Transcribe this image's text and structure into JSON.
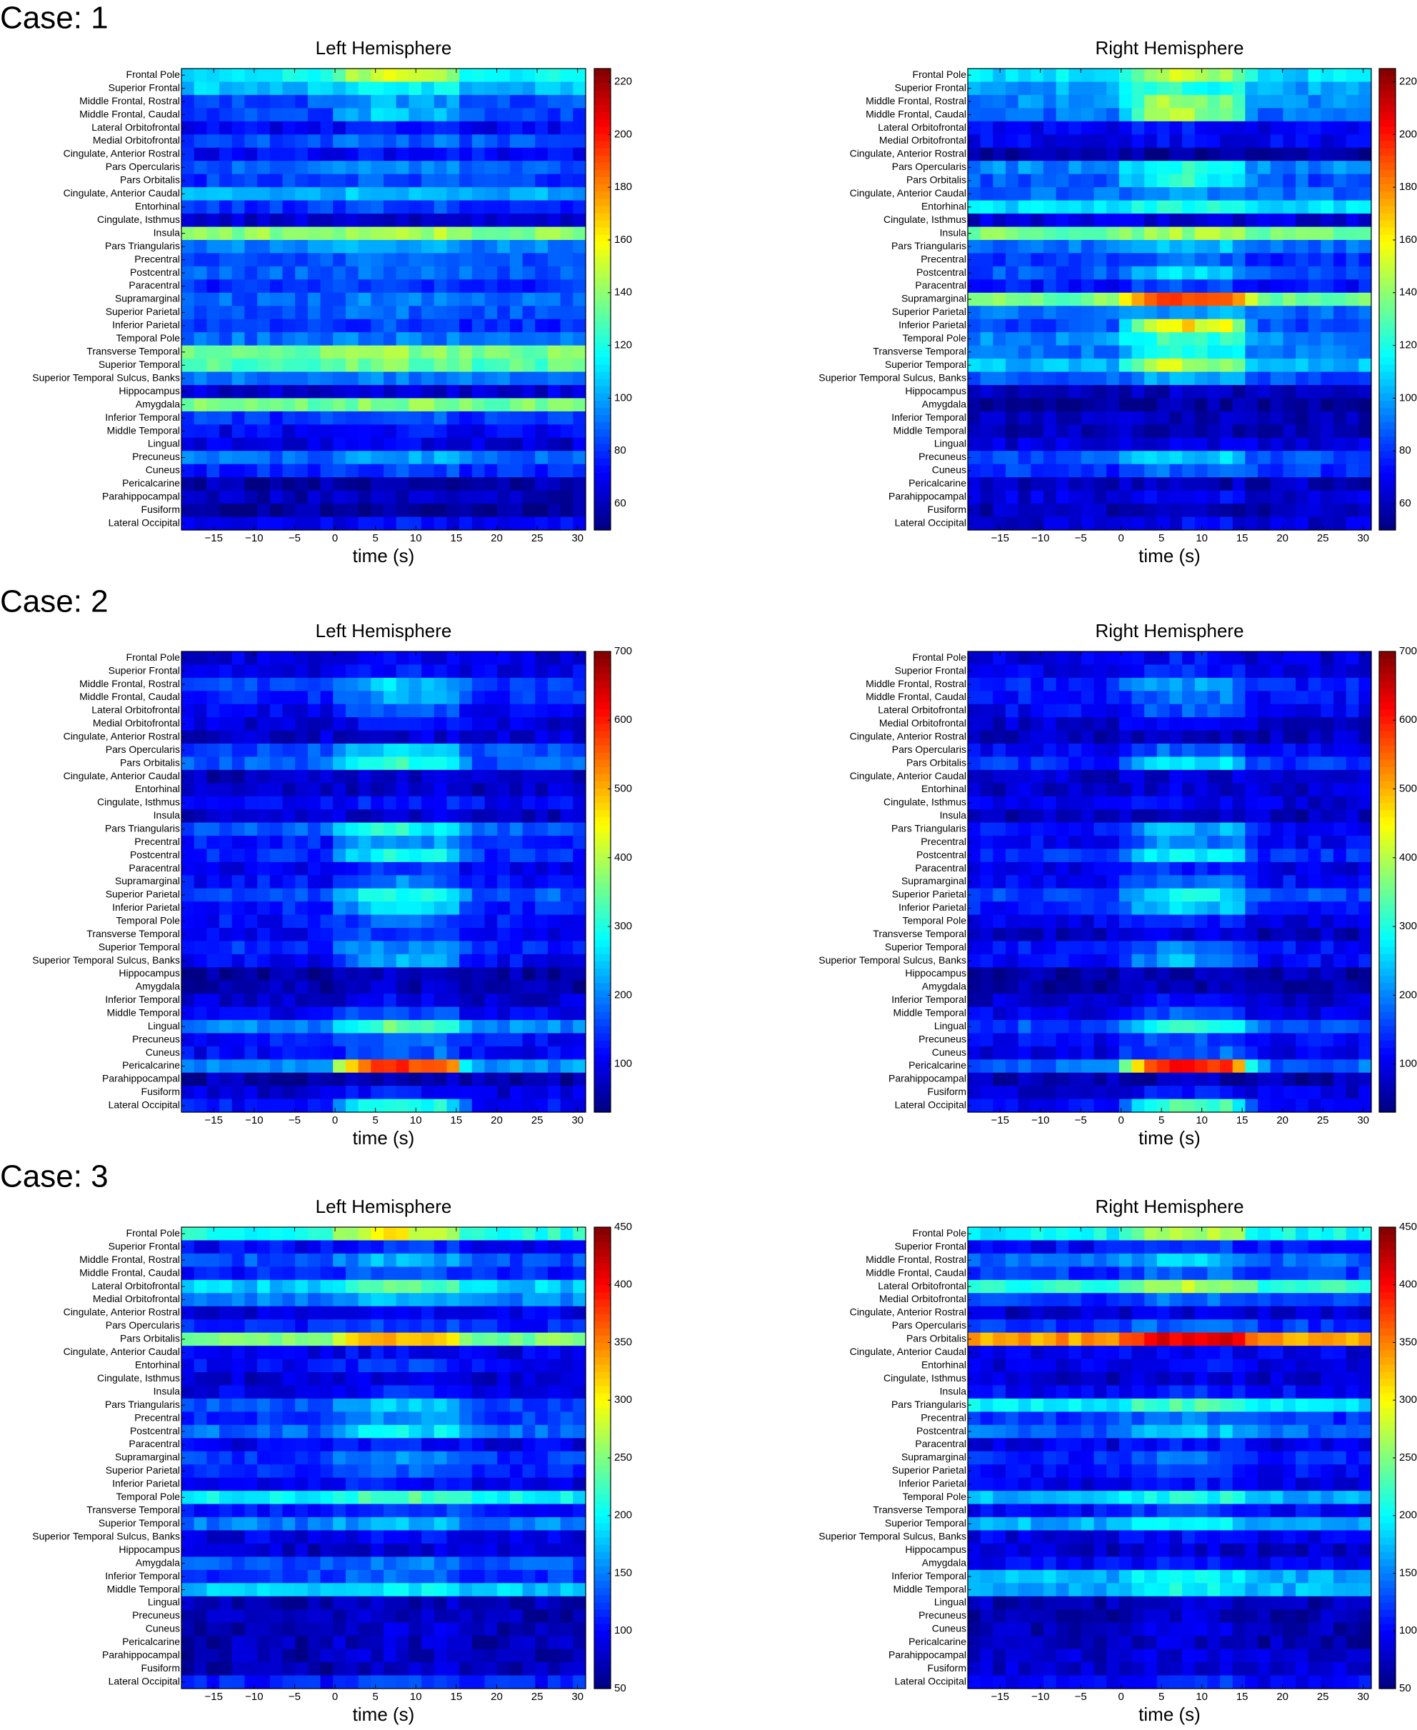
{
  "chart_data": {
    "type": "heatmap",
    "regions": [
      "Frontal Pole",
      "Superior Frontal",
      "Middle Frontal, Rostral",
      "Middle Frontal, Caudal",
      "Lateral Orbitofrontal",
      "Medial Orbitofrontal",
      "Cingulate, Anterior Rostral",
      "Pars Opercularis",
      "Pars Orbitalis",
      "Cingulate, Anterior Caudal",
      "Entorhinal",
      "Cingulate, Isthmus",
      "Insula",
      "Pars Triangularis",
      "Precentral",
      "Postcentral",
      "Paracentral",
      "Supramarginal",
      "Superior Parietal",
      "Inferior Parietal",
      "Temporal Pole",
      "Transverse Temporal",
      "Superior Temporal",
      "Superior Temporal Sulcus, Banks",
      "Hippocampus",
      "Amygdala",
      "Inferior Temporal",
      "Middle Temporal",
      "Lingual",
      "Precuneus",
      "Cuneus",
      "Pericalcarine",
      "Parahippocampal",
      "Fusiform",
      "Lateral Occipital"
    ],
    "time_ticks": [
      -15,
      -10,
      -5,
      0,
      5,
      10,
      15,
      20,
      25,
      30
    ],
    "xlim": [
      -19,
      31
    ],
    "xlabel": "time (s)",
    "n_time_bins": 32,
    "colormap": "jet",
    "cases": [
      {
        "label": "Case: 1",
        "clim": [
          50,
          225
        ],
        "cbar_ticks": [
          60,
          80,
          100,
          120,
          140,
          160,
          180,
          200,
          220
        ],
        "panels": [
          {
            "title": "Left Hemisphere",
            "base": [
              115,
              105,
              85,
              82,
              70,
              85,
              72,
              88,
              80,
              100,
              80,
              62,
              140,
              95,
              85,
              88,
              78,
              88,
              85,
              78,
              90,
              135,
              130,
              90,
              65,
              135,
              80,
              70,
              65,
              90,
              78,
              58,
              60,
              55,
              70
            ],
            "event": [
              40,
              10,
              15,
              25,
              3,
              5,
              0,
              10,
              5,
              5,
              5,
              0,
              5,
              5,
              5,
              5,
              3,
              5,
              5,
              5,
              3,
              5,
              5,
              3,
              0,
              3,
              5,
              3,
              3,
              10,
              5,
              0,
              0,
              0,
              3
            ]
          },
          {
            "title": "Right Hemisphere",
            "base": [
              110,
              100,
              95,
              90,
              70,
              70,
              55,
              95,
              85,
              90,
              110,
              65,
              135,
              90,
              80,
              85,
              75,
              135,
              90,
              85,
              95,
              90,
              105,
              85,
              60,
              55,
              60,
              60,
              65,
              85,
              80,
              60,
              65,
              60,
              65
            ],
            "event": [
              40,
              25,
              50,
              55,
              5,
              0,
              0,
              25,
              40,
              5,
              10,
              0,
              8,
              15,
              10,
              25,
              8,
              60,
              10,
              80,
              35,
              30,
              45,
              15,
              0,
              0,
              0,
              0,
              0,
              25,
              10,
              0,
              5,
              0,
              5
            ]
          }
        ]
      },
      {
        "label": "Case: 2",
        "clim": [
          30,
          700
        ],
        "cbar_ticks": [
          100,
          200,
          300,
          400,
          500,
          600,
          700
        ],
        "panels": [
          {
            "title": "Left Hemisphere",
            "base": [
              90,
              100,
              150,
              140,
              110,
              90,
              80,
              160,
              170,
              70,
              75,
              110,
              80,
              170,
              130,
              140,
              110,
              120,
              170,
              130,
              120,
              110,
              140,
              110,
              55,
              60,
              80,
              110,
              200,
              120,
              110,
              210,
              60,
              90,
              120
            ],
            "event": [
              20,
              30,
              100,
              80,
              60,
              30,
              10,
              100,
              150,
              10,
              10,
              30,
              10,
              130,
              100,
              150,
              50,
              80,
              140,
              130,
              60,
              50,
              70,
              120,
              10,
              10,
              30,
              60,
              150,
              60,
              80,
              400,
              10,
              40,
              200
            ]
          },
          {
            "title": "Right Hemisphere",
            "base": [
              90,
              100,
              130,
              120,
              110,
              80,
              70,
              110,
              140,
              80,
              80,
              90,
              70,
              120,
              110,
              140,
              100,
              120,
              160,
              130,
              100,
              70,
              120,
              110,
              55,
              55,
              80,
              100,
              160,
              110,
              100,
              180,
              60,
              90,
              110
            ],
            "event": [
              30,
              30,
              90,
              80,
              60,
              30,
              10,
              70,
              120,
              10,
              10,
              20,
              10,
              120,
              100,
              150,
              40,
              80,
              130,
              120,
              40,
              30,
              70,
              120,
              10,
              10,
              30,
              80,
              150,
              60,
              80,
              450,
              10,
              40,
              220
            ]
          }
        ]
      },
      {
        "label": "Case: 3",
        "clim": [
          50,
          450
        ],
        "cbar_ticks": [
          50,
          100,
          150,
          200,
          250,
          300,
          350,
          400,
          450
        ],
        "panels": [
          {
            "title": "Left Hemisphere",
            "base": [
              210,
              100,
              130,
              110,
              180,
              150,
              90,
              110,
              250,
              90,
              100,
              80,
              90,
              130,
              120,
              140,
              90,
              120,
              110,
              90,
              200,
              110,
              150,
              90,
              80,
              130,
              120,
              180,
              70,
              70,
              70,
              70,
              70,
              70,
              110
            ],
            "event": [
              90,
              20,
              40,
              20,
              60,
              30,
              10,
              20,
              90,
              10,
              20,
              10,
              20,
              50,
              40,
              60,
              20,
              40,
              30,
              20,
              30,
              20,
              20,
              10,
              5,
              20,
              20,
              20,
              5,
              10,
              15,
              10,
              10,
              10,
              20
            ]
          },
          {
            "title": "Right Hemisphere",
            "base": [
              200,
              100,
              140,
              120,
              220,
              120,
              80,
              120,
              340,
              90,
              90,
              80,
              100,
              190,
              120,
              140,
              90,
              110,
              100,
              90,
              170,
              100,
              170,
              90,
              80,
              100,
              170,
              170,
              70,
              70,
              70,
              70,
              80,
              80,
              100
            ],
            "event": [
              80,
              20,
              40,
              20,
              50,
              20,
              10,
              20,
              70,
              10,
              10,
              10,
              10,
              40,
              30,
              40,
              20,
              30,
              20,
              20,
              40,
              20,
              20,
              10,
              5,
              10,
              30,
              30,
              5,
              10,
              15,
              10,
              10,
              10,
              20
            ]
          }
        ]
      }
    ]
  }
}
